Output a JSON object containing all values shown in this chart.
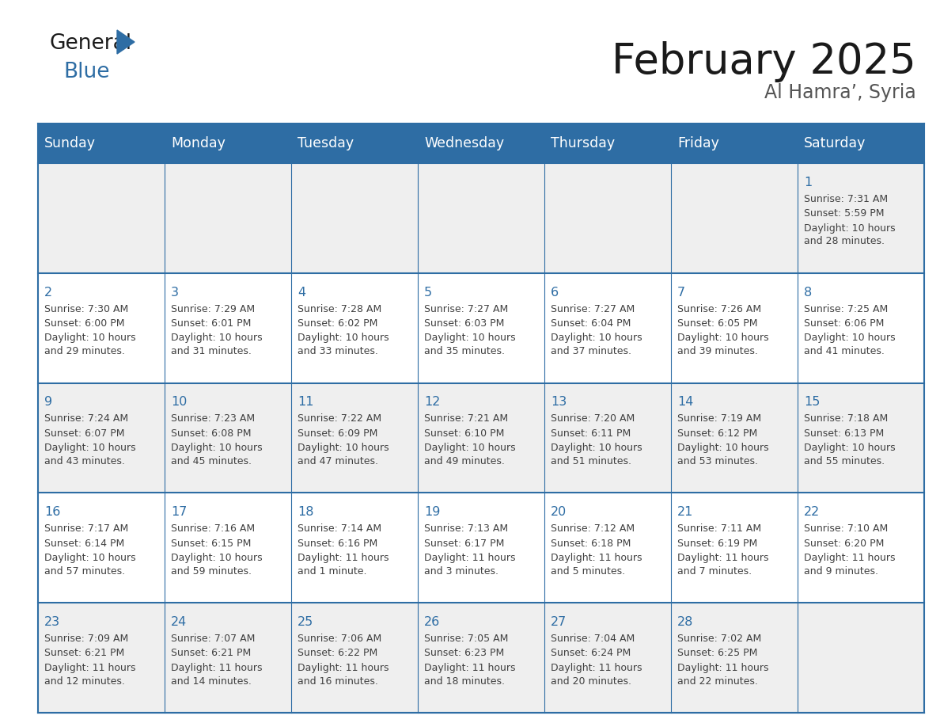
{
  "title": "February 2025",
  "subtitle": "Al Hamra’, Syria",
  "header_bg": "#2E6DA4",
  "header_text_color": "#FFFFFF",
  "day_names": [
    "Sunday",
    "Monday",
    "Tuesday",
    "Wednesday",
    "Thursday",
    "Friday",
    "Saturday"
  ],
  "odd_row_bg": "#EFEFEF",
  "even_row_bg": "#FFFFFF",
  "border_color": "#2E6DA4",
  "date_color": "#2E6DA4",
  "text_color": "#404040",
  "title_color": "#1a1a1a",
  "subtitle_color": "#555555",
  "days": [
    {
      "day": 1,
      "col": 6,
      "row": 0,
      "sunrise": "7:31 AM",
      "sunset": "5:59 PM",
      "daylight_line1": "Daylight: 10 hours",
      "daylight_line2": "and 28 minutes."
    },
    {
      "day": 2,
      "col": 0,
      "row": 1,
      "sunrise": "7:30 AM",
      "sunset": "6:00 PM",
      "daylight_line1": "Daylight: 10 hours",
      "daylight_line2": "and 29 minutes."
    },
    {
      "day": 3,
      "col": 1,
      "row": 1,
      "sunrise": "7:29 AM",
      "sunset": "6:01 PM",
      "daylight_line1": "Daylight: 10 hours",
      "daylight_line2": "and 31 minutes."
    },
    {
      "day": 4,
      "col": 2,
      "row": 1,
      "sunrise": "7:28 AM",
      "sunset": "6:02 PM",
      "daylight_line1": "Daylight: 10 hours",
      "daylight_line2": "and 33 minutes."
    },
    {
      "day": 5,
      "col": 3,
      "row": 1,
      "sunrise": "7:27 AM",
      "sunset": "6:03 PM",
      "daylight_line1": "Daylight: 10 hours",
      "daylight_line2": "and 35 minutes."
    },
    {
      "day": 6,
      "col": 4,
      "row": 1,
      "sunrise": "7:27 AM",
      "sunset": "6:04 PM",
      "daylight_line1": "Daylight: 10 hours",
      "daylight_line2": "and 37 minutes."
    },
    {
      "day": 7,
      "col": 5,
      "row": 1,
      "sunrise": "7:26 AM",
      "sunset": "6:05 PM",
      "daylight_line1": "Daylight: 10 hours",
      "daylight_line2": "and 39 minutes."
    },
    {
      "day": 8,
      "col": 6,
      "row": 1,
      "sunrise": "7:25 AM",
      "sunset": "6:06 PM",
      "daylight_line1": "Daylight: 10 hours",
      "daylight_line2": "and 41 minutes."
    },
    {
      "day": 9,
      "col": 0,
      "row": 2,
      "sunrise": "7:24 AM",
      "sunset": "6:07 PM",
      "daylight_line1": "Daylight: 10 hours",
      "daylight_line2": "and 43 minutes."
    },
    {
      "day": 10,
      "col": 1,
      "row": 2,
      "sunrise": "7:23 AM",
      "sunset": "6:08 PM",
      "daylight_line1": "Daylight: 10 hours",
      "daylight_line2": "and 45 minutes."
    },
    {
      "day": 11,
      "col": 2,
      "row": 2,
      "sunrise": "7:22 AM",
      "sunset": "6:09 PM",
      "daylight_line1": "Daylight: 10 hours",
      "daylight_line2": "and 47 minutes."
    },
    {
      "day": 12,
      "col": 3,
      "row": 2,
      "sunrise": "7:21 AM",
      "sunset": "6:10 PM",
      "daylight_line1": "Daylight: 10 hours",
      "daylight_line2": "and 49 minutes."
    },
    {
      "day": 13,
      "col": 4,
      "row": 2,
      "sunrise": "7:20 AM",
      "sunset": "6:11 PM",
      "daylight_line1": "Daylight: 10 hours",
      "daylight_line2": "and 51 minutes."
    },
    {
      "day": 14,
      "col": 5,
      "row": 2,
      "sunrise": "7:19 AM",
      "sunset": "6:12 PM",
      "daylight_line1": "Daylight: 10 hours",
      "daylight_line2": "and 53 minutes."
    },
    {
      "day": 15,
      "col": 6,
      "row": 2,
      "sunrise": "7:18 AM",
      "sunset": "6:13 PM",
      "daylight_line1": "Daylight: 10 hours",
      "daylight_line2": "and 55 minutes."
    },
    {
      "day": 16,
      "col": 0,
      "row": 3,
      "sunrise": "7:17 AM",
      "sunset": "6:14 PM",
      "daylight_line1": "Daylight: 10 hours",
      "daylight_line2": "and 57 minutes."
    },
    {
      "day": 17,
      "col": 1,
      "row": 3,
      "sunrise": "7:16 AM",
      "sunset": "6:15 PM",
      "daylight_line1": "Daylight: 10 hours",
      "daylight_line2": "and 59 minutes."
    },
    {
      "day": 18,
      "col": 2,
      "row": 3,
      "sunrise": "7:14 AM",
      "sunset": "6:16 PM",
      "daylight_line1": "Daylight: 11 hours",
      "daylight_line2": "and 1 minute."
    },
    {
      "day": 19,
      "col": 3,
      "row": 3,
      "sunrise": "7:13 AM",
      "sunset": "6:17 PM",
      "daylight_line1": "Daylight: 11 hours",
      "daylight_line2": "and 3 minutes."
    },
    {
      "day": 20,
      "col": 4,
      "row": 3,
      "sunrise": "7:12 AM",
      "sunset": "6:18 PM",
      "daylight_line1": "Daylight: 11 hours",
      "daylight_line2": "and 5 minutes."
    },
    {
      "day": 21,
      "col": 5,
      "row": 3,
      "sunrise": "7:11 AM",
      "sunset": "6:19 PM",
      "daylight_line1": "Daylight: 11 hours",
      "daylight_line2": "and 7 minutes."
    },
    {
      "day": 22,
      "col": 6,
      "row": 3,
      "sunrise": "7:10 AM",
      "sunset": "6:20 PM",
      "daylight_line1": "Daylight: 11 hours",
      "daylight_line2": "and 9 minutes."
    },
    {
      "day": 23,
      "col": 0,
      "row": 4,
      "sunrise": "7:09 AM",
      "sunset": "6:21 PM",
      "daylight_line1": "Daylight: 11 hours",
      "daylight_line2": "and 12 minutes."
    },
    {
      "day": 24,
      "col": 1,
      "row": 4,
      "sunrise": "7:07 AM",
      "sunset": "6:21 PM",
      "daylight_line1": "Daylight: 11 hours",
      "daylight_line2": "and 14 minutes."
    },
    {
      "day": 25,
      "col": 2,
      "row": 4,
      "sunrise": "7:06 AM",
      "sunset": "6:22 PM",
      "daylight_line1": "Daylight: 11 hours",
      "daylight_line2": "and 16 minutes."
    },
    {
      "day": 26,
      "col": 3,
      "row": 4,
      "sunrise": "7:05 AM",
      "sunset": "6:23 PM",
      "daylight_line1": "Daylight: 11 hours",
      "daylight_line2": "and 18 minutes."
    },
    {
      "day": 27,
      "col": 4,
      "row": 4,
      "sunrise": "7:04 AM",
      "sunset": "6:24 PM",
      "daylight_line1": "Daylight: 11 hours",
      "daylight_line2": "and 20 minutes."
    },
    {
      "day": 28,
      "col": 5,
      "row": 4,
      "sunrise": "7:02 AM",
      "sunset": "6:25 PM",
      "daylight_line1": "Daylight: 11 hours",
      "daylight_line2": "and 22 minutes."
    }
  ]
}
